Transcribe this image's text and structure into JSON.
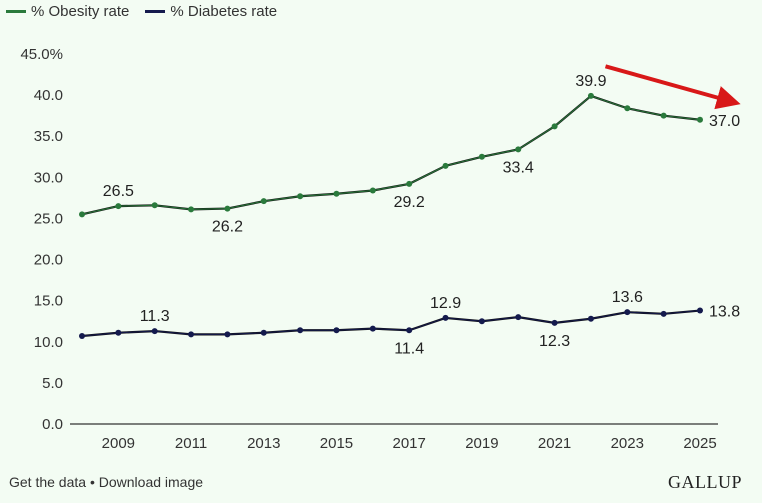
{
  "colors": {
    "obesity": "#2a7a3c",
    "diabetes": "#141a4d",
    "arrow": "#d81818",
    "axis": "#333333",
    "background": "#f3fcf3"
  },
  "legend": [
    {
      "label": "% Obesity rate",
      "series": "obesity"
    },
    {
      "label": "% Diabetes rate",
      "series": "diabetes"
    }
  ],
  "footer": {
    "get_data": "Get the data",
    "separator": "•",
    "download": "Download image"
  },
  "logo": "GALLUP",
  "chart_data": {
    "type": "line",
    "title": "",
    "xlabel": "",
    "ylabel": "",
    "x": [
      2008,
      2009,
      2010,
      2011,
      2012,
      2013,
      2014,
      2015,
      2016,
      2017,
      2018,
      2019,
      2020,
      2021,
      2022,
      2023,
      2024,
      2025
    ],
    "xlim": [
      2008,
      2025
    ],
    "xticks": [
      "2009",
      "2011",
      "2013",
      "2015",
      "2017",
      "2019",
      "2021",
      "2023",
      "2025"
    ],
    "ylim": [
      0,
      45
    ],
    "yticks": [
      "0.0",
      "5.0",
      "10.0",
      "15.0",
      "20.0",
      "25.0",
      "30.0",
      "35.0",
      "40.0",
      "45.0%"
    ],
    "grid": false,
    "legend_position": "top-left",
    "series": [
      {
        "name": "% Obesity rate",
        "key": "obesity",
        "values": [
          25.5,
          26.5,
          26.6,
          26.1,
          26.2,
          27.1,
          27.7,
          28.0,
          28.4,
          29.2,
          31.4,
          32.5,
          33.4,
          36.2,
          39.9,
          38.4,
          37.5,
          37.0
        ],
        "labels": [
          {
            "year": 2009,
            "text": "26.5",
            "pos": "above"
          },
          {
            "year": 2012,
            "text": "26.2",
            "pos": "below"
          },
          {
            "year": 2017,
            "text": "29.2",
            "pos": "below"
          },
          {
            "year": 2020,
            "text": "33.4",
            "pos": "below"
          },
          {
            "year": 2022,
            "text": "39.9",
            "pos": "above"
          },
          {
            "year": 2025,
            "text": "37.0",
            "pos": "right"
          }
        ]
      },
      {
        "name": "% Diabetes rate",
        "key": "diabetes",
        "values": [
          10.7,
          11.1,
          11.3,
          10.9,
          10.9,
          11.1,
          11.4,
          11.4,
          11.6,
          11.4,
          12.9,
          12.5,
          13.0,
          12.3,
          12.8,
          13.6,
          13.4,
          13.8
        ],
        "labels": [
          {
            "year": 2010,
            "text": "11.3",
            "pos": "above"
          },
          {
            "year": 2017,
            "text": "11.4",
            "pos": "below"
          },
          {
            "year": 2018,
            "text": "12.9",
            "pos": "above"
          },
          {
            "year": 2021,
            "text": "12.3",
            "pos": "below"
          },
          {
            "year": 2023,
            "text": "13.6",
            "pos": "above"
          },
          {
            "year": 2025,
            "text": "13.8",
            "pos": "right"
          }
        ]
      }
    ],
    "annotations": [
      {
        "type": "arrow",
        "description": "red downward-trend arrow",
        "from": {
          "year": 2022.4,
          "value": 43.5
        },
        "to": {
          "year": 2025.8,
          "value": 39.3
        }
      }
    ]
  }
}
